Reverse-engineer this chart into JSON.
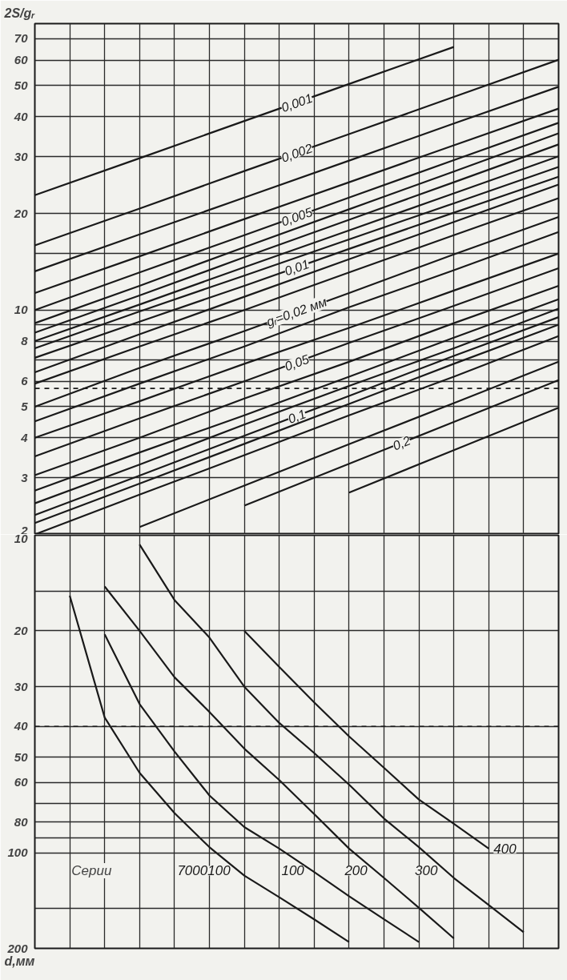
{
  "chart_data": [
    {
      "type": "line",
      "ylabel": "2S/gᵣ",
      "categories": [
        null,
        null,
        null,
        null,
        null,
        null
      ],
      "ylim": [
        2,
        78
      ],
      "yticks": [
        2,
        3,
        4,
        5,
        6,
        {
          "value": 7,
          "label": null
        },
        8,
        {
          "value": 9,
          "label": null
        },
        10,
        {
          "value": 15,
          "label": null
        },
        20,
        30,
        40,
        50,
        60,
        70
      ],
      "log": "y",
      "grid": true,
      "tick_labels": "y",
      "ref_lines": [
        {
          "axis": "y",
          "value": 5.7,
          "line_style": "dashed",
          "color": "#1a1a1a"
        }
      ],
      "series": [
        {
          "name": "0,001",
          "color": "#1a1a1a",
          "values": [
            22.8,
            29.7,
            38.8,
            50.6,
            66.0,
            null
          ]
        },
        {
          "name": "0,002",
          "color": "#1a1a1a",
          "values": [
            15.9,
            20.7,
            27.1,
            35.3,
            46.1,
            60.2
          ]
        },
        {
          "color": "#1a1a1a",
          "values": [
            13.2,
            17.2,
            22.4,
            29.2,
            38.1,
            49.6
          ]
        },
        {
          "color": "#1a1a1a",
          "values": [
            11.3,
            14.7,
            19.2,
            25.0,
            32.6,
            42.4
          ]
        },
        {
          "name": "0,005",
          "color": "#1a1a1a",
          "values": [
            10.0,
            13.1,
            17.1,
            22.4,
            29.3,
            38.3
          ]
        },
        {
          "color": "#1a1a1a",
          "values": [
            9.1,
            11.9,
            15.7,
            20.6,
            27.0,
            35.5
          ]
        },
        {
          "color": "#1a1a1a",
          "values": [
            8.5,
            11.1,
            14.6,
            19.1,
            25.0,
            32.8
          ]
        },
        {
          "color": "#1a1a1a",
          "values": [
            8.0,
            10.4,
            13.6,
            17.7,
            23.1,
            30.1
          ]
        },
        {
          "color": "#1a1a1a",
          "values": [
            7.6,
            9.9,
            12.8,
            16.6,
            21.5,
            27.9
          ]
        },
        {
          "name": "0,01",
          "color": "#1a1a1a",
          "values": [
            7.1,
            9.2,
            11.9,
            15.5,
            20.1,
            26.0
          ]
        },
        {
          "color": "#1a1a1a",
          "values": [
            6.4,
            8.4,
            11.0,
            14.4,
            18.8,
            24.6
          ]
        },
        {
          "color": "#1a1a1a",
          "values": [
            5.9,
            7.7,
            10.0,
            13.1,
            17.1,
            22.3
          ]
        },
        {
          "name": "gᵣ=0,02 мм",
          "color": "#1a1a1a",
          "values": [
            5.0,
            6.6,
            8.6,
            11.3,
            14.9,
            19.5
          ]
        },
        {
          "color": "#1a1a1a",
          "values": [
            4.5,
            5.9,
            7.7,
            10.2,
            13.3,
            17.5
          ]
        },
        {
          "color": "#1a1a1a",
          "values": [
            4.0,
            5.2,
            6.8,
            8.8,
            11.5,
            15.0
          ]
        },
        {
          "name": "0,05",
          "color": "#1a1a1a",
          "values": [
            3.5,
            4.6,
            6.0,
            7.9,
            10.3,
            13.5
          ]
        },
        {
          "color": "#1a1a1a",
          "values": [
            3.06,
            4.0,
            5.3,
            6.9,
            9.1,
            11.9
          ]
        },
        {
          "color": "#1a1a1a",
          "values": [
            2.74,
            3.6,
            4.7,
            6.2,
            8.2,
            10.8
          ]
        },
        {
          "color": "#1a1a1a",
          "values": [
            2.5,
            3.3,
            4.4,
            5.8,
            7.6,
            10.1
          ]
        },
        {
          "name": "0,1",
          "color": "#1a1a1a",
          "values": [
            2.3,
            3.05,
            4.06,
            5.4,
            7.2,
            9.5
          ]
        },
        {
          "color": "#1a1a1a",
          "values": [
            2.17,
            2.88,
            3.83,
            5.1,
            6.8,
            9.0
          ]
        },
        {
          "color": "#1a1a1a",
          "values": [
            2.0,
            2.66,
            3.53,
            4.7,
            6.2,
            8.3
          ]
        },
        {
          "color": "#1a1a1a",
          "values": [
            null,
            2.11,
            2.84,
            3.82,
            5.13,
            6.9
          ]
        },
        {
          "name": "0,2",
          "color": "#1a1a1a",
          "values": [
            null,
            null,
            2.46,
            3.32,
            4.48,
            6.05
          ]
        },
        {
          "color": "#1a1a1a",
          "values": [
            null,
            null,
            null,
            2.7,
            3.66,
            4.96
          ]
        }
      ]
    },
    {
      "type": "line",
      "ylabel": "d,мм",
      "categories": [
        null,
        null,
        null,
        null,
        null,
        null,
        null,
        null,
        null,
        null,
        null,
        null,
        null,
        null,
        null,
        null
      ],
      "ylim": [
        200,
        10
      ],
      "yticks": [
        10,
        {
          "value": 15,
          "label": null
        },
        20,
        30,
        40,
        50,
        60,
        {
          "value": 70,
          "label": null
        },
        80,
        {
          "value": 90,
          "label": null
        },
        100,
        {
          "value": 150,
          "label": null
        },
        200
      ],
      "log": "y",
      "grid": true,
      "tick_labels": "y",
      "ref_lines": [
        {
          "axis": "y",
          "value": 40,
          "line_style": "dashed",
          "color": "#1a1a1a"
        }
      ],
      "annotations": [
        "Серии"
      ],
      "series": [
        {
          "name": "7000100",
          "color": "#1a1a1a",
          "values": [
            null,
            15.5,
            37.5,
            56,
            75,
            96,
            118,
            138,
            162,
            191,
            null,
            null,
            null,
            null,
            null,
            null
          ]
        },
        {
          "name": "100",
          "color": "#1a1a1a",
          "values": [
            null,
            null,
            20.5,
            34,
            48,
            66,
            83,
            97,
            115,
            137,
            162,
            191,
            null,
            null,
            null,
            null
          ]
        },
        {
          "name": "200",
          "color": "#1a1a1a",
          "values": [
            null,
            null,
            14.5,
            20,
            28,
            36,
            47,
            59,
            75.5,
            97,
            120,
            149,
            186,
            null,
            null,
            null
          ]
        },
        {
          "name": "300",
          "color": "#1a1a1a",
          "values": [
            null,
            null,
            null,
            10.7,
            16,
            21,
            30,
            39,
            48.5,
            61,
            78,
            96,
            120,
            146,
            178,
            null
          ]
        },
        {
          "name": "400",
          "color": "#1a1a1a",
          "values": [
            null,
            null,
            null,
            null,
            null,
            null,
            20,
            26,
            33.6,
            43,
            54,
            68,
            81,
            97,
            null,
            null
          ]
        }
      ]
    }
  ]
}
